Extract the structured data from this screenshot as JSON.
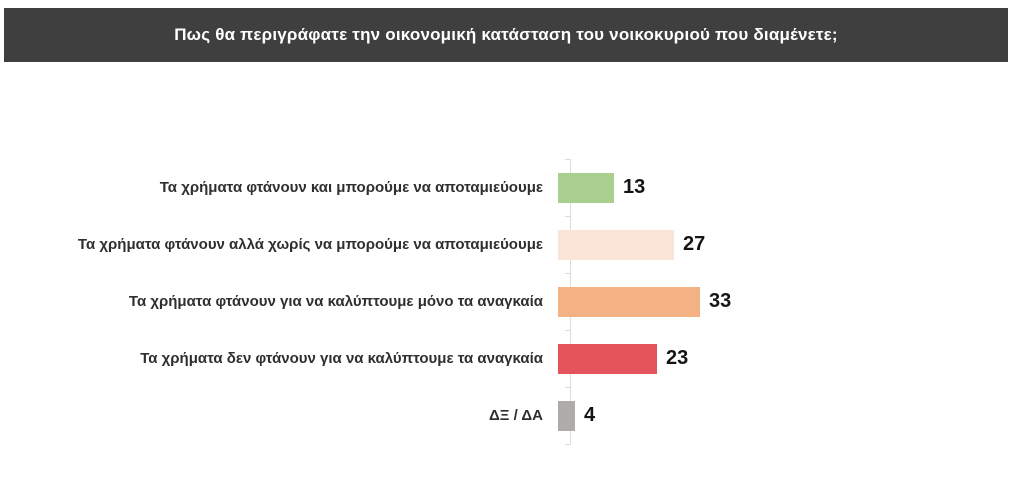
{
  "title": "Πως θα περιγράφατε την οικονομική κατάσταση του νοικοκυριού που διαμένετε;",
  "chart_data": {
    "type": "bar",
    "orientation": "horizontal",
    "title": "Πως θα περιγράφατε την οικονομική κατάσταση του νοικοκυριού που διαμένετε;",
    "categories": [
      "Τα χρήματα φτάνουν και μπορούμε να αποταμιεύουμε",
      "Τα χρήματα φτάνουν αλλά χωρίς να μπορούμε να αποταμιεύουμε",
      "Τα χρήματα φτάνουν για να καλύπτουμε μόνο τα αναγκαία",
      "Τα χρήματα δεν φτάνουν για να καλύπτουμε τα αναγκαία",
      "ΔΞ / ΔΑ"
    ],
    "values": [
      13,
      27,
      33,
      23,
      4
    ],
    "value_labels": [
      "13",
      "27",
      "33",
      "23",
      "4"
    ],
    "bar_colors": [
      "#a9d08e",
      "#fbe5d6",
      "#f4b183",
      "#e4545a",
      "#aeabab"
    ],
    "xlabel": "",
    "ylabel": "",
    "xlim": [
      0,
      100
    ],
    "grid": false,
    "legend": "none",
    "value_label_position": "end-of-bar"
  },
  "colors": {
    "title_bar_bg": "#3f3f3f",
    "title_text": "#ffffff",
    "axis_line": "#dcdcdc",
    "category_text": "#2f2f2f",
    "value_text": "#141414",
    "background": "#ffffff"
  }
}
